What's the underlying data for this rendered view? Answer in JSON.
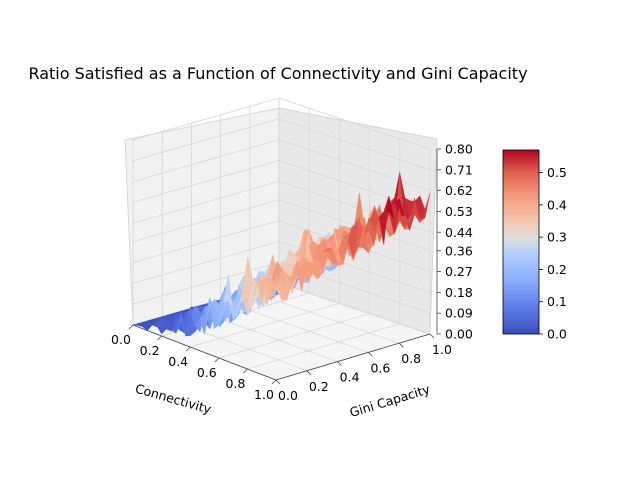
{
  "chart_data": {
    "type": "surface3d",
    "title": "Ratio Satisfied as a Function of Connectivity and Gini Capacity",
    "xlabel": "Connectivity",
    "ylabel": "Gini Capacity",
    "zlabel": "",
    "xlim": [
      0.0,
      1.0
    ],
    "ylim": [
      0.0,
      1.0
    ],
    "zlim": [
      0.0,
      0.8
    ],
    "x_ticks": [
      "0.0",
      "0.2",
      "0.4",
      "0.6",
      "0.8",
      "1.0"
    ],
    "y_ticks": [
      "0.0",
      "0.2",
      "0.4",
      "0.6",
      "0.8",
      "1.0"
    ],
    "z_ticks": [
      "0.00",
      "0.09",
      "0.18",
      "0.27",
      "0.36",
      "0.44",
      "0.53",
      "0.62",
      "0.71",
      "0.80"
    ],
    "grid": true,
    "colormap": "coolwarm",
    "colorbar": {
      "min": 0.0,
      "max": 0.57,
      "ticks": [
        "0.0",
        "0.1",
        "0.2",
        "0.3",
        "0.4",
        "0.5"
      ],
      "low_color": "#3b4cc0",
      "mid_color": "#dddddd",
      "high_color": "#b40426"
    },
    "surface_trend": {
      "x_points": [
        0.0,
        0.2,
        0.4,
        0.6,
        0.8,
        1.0
      ],
      "mean_z_at_max_gini": [
        0.0,
        0.08,
        0.22,
        0.38,
        0.5,
        0.57
      ],
      "mean_z_at_min_gini": [
        0.0,
        0.03,
        0.1,
        0.2,
        0.3,
        0.38
      ],
      "noise_amplitude": 0.08
    }
  }
}
